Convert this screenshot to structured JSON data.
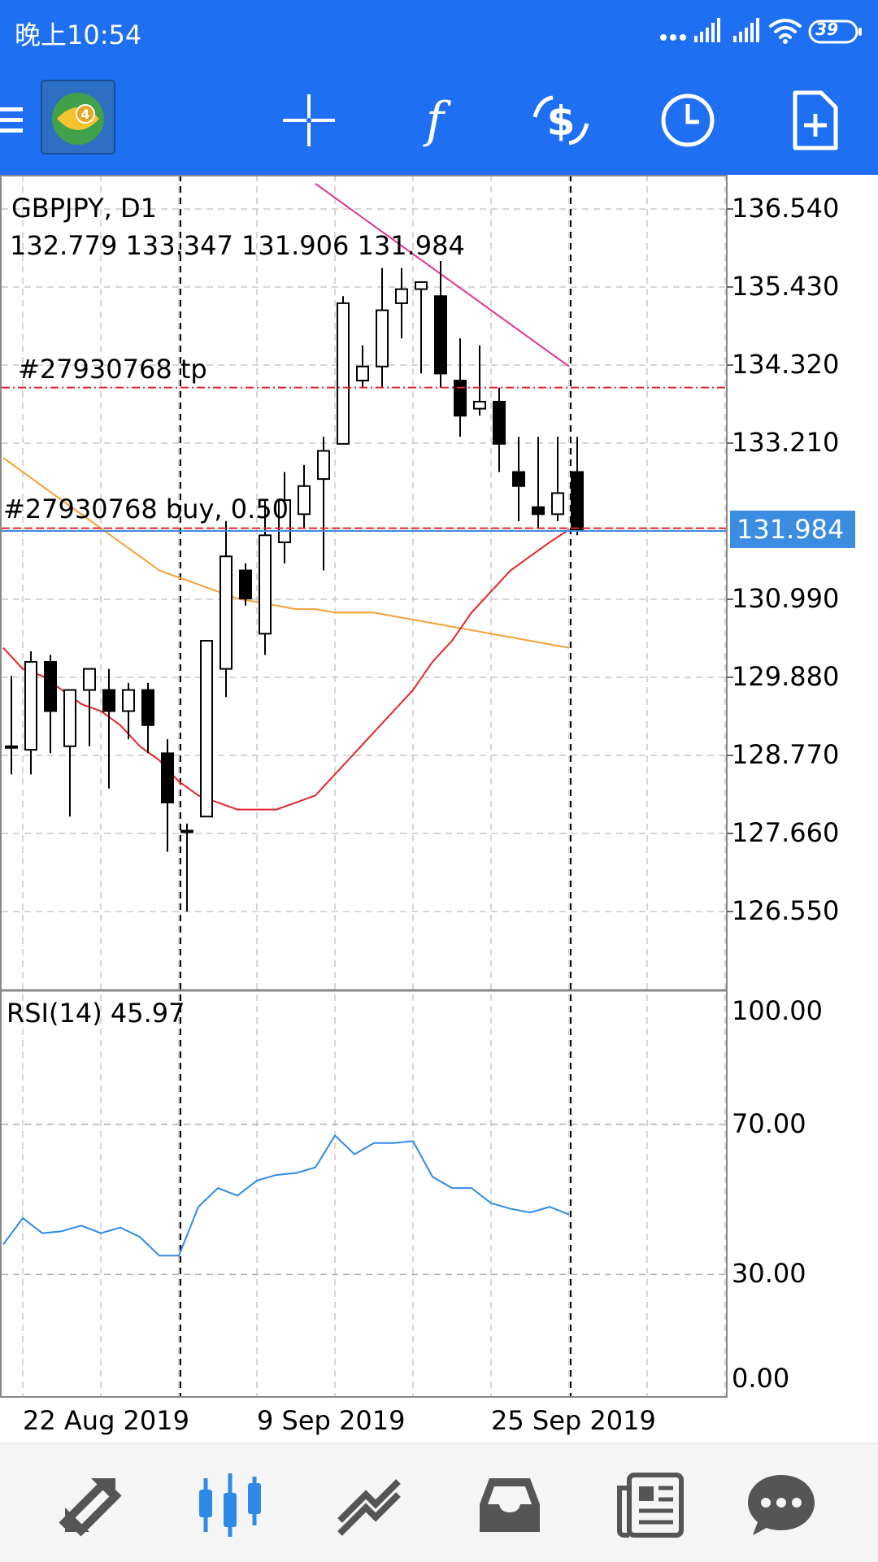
{
  "status_bar": {
    "time": "晚上10:54",
    "battery": "39"
  },
  "toolbar": {
    "menu_icon": "hamburger-icon",
    "app_logo": "mt4-logo",
    "items": [
      {
        "name": "crosshair",
        "icon": "crosshair-icon"
      },
      {
        "name": "indicators",
        "icon": "function-icon"
      },
      {
        "name": "trade",
        "icon": "dollar-refresh-icon"
      },
      {
        "name": "timeframe",
        "icon": "clock-icon"
      },
      {
        "name": "new-order",
        "icon": "new-document-icon"
      }
    ]
  },
  "chart": {
    "symbol_label": "GBPJPY, D1",
    "ohlc_label": "132.779 133.347 131.906 131.984",
    "tp_label": "#27930768 tp",
    "buy_label": "#27930768 buy, 0.50",
    "current_price": "131.984",
    "price_ticks": [
      "136.540",
      "135.430",
      "134.320",
      "133.210",
      "130.990",
      "129.880",
      "128.770",
      "127.660",
      "126.550"
    ],
    "rsi_label": "RSI(14) 45.97",
    "rsi_ticks": [
      "100.00",
      "70.00",
      "30.00",
      "0.00"
    ],
    "date_ticks": [
      "22 Aug 2019",
      "9 Sep 2019",
      "25 Sep 2019"
    ],
    "colors": {
      "bull": "#ffffff",
      "bear": "#000000",
      "ma_fast": "#e8232a",
      "ma_mid": "#f5a033",
      "ma_slow": "#e0348f",
      "rsi": "#2d8ae6",
      "price_tag": "#3b8de2",
      "tp_line": "#e8232a"
    }
  },
  "chart_data": {
    "type": "candlestick",
    "symbol": "GBPJPY",
    "timeframe": "D1",
    "ylim": [
      125.8,
      137.2
    ],
    "candles": [
      {
        "o": 128.9,
        "h": 129.9,
        "l": 128.5,
        "c": 128.9
      },
      {
        "o": 128.85,
        "h": 130.25,
        "l": 128.5,
        "c": 130.1
      },
      {
        "o": 130.1,
        "h": 130.2,
        "l": 128.8,
        "c": 129.4
      },
      {
        "o": 128.9,
        "h": 129.7,
        "l": 127.9,
        "c": 129.7
      },
      {
        "o": 129.7,
        "h": 130.0,
        "l": 128.9,
        "c": 130.0
      },
      {
        "o": 129.7,
        "h": 130.0,
        "l": 128.3,
        "c": 129.4
      },
      {
        "o": 129.4,
        "h": 129.8,
        "l": 129.0,
        "c": 129.7
      },
      {
        "o": 129.7,
        "h": 129.8,
        "l": 128.8,
        "c": 129.2
      },
      {
        "o": 128.8,
        "h": 129.0,
        "l": 127.4,
        "c": 128.1
      },
      {
        "o": 127.7,
        "h": 127.8,
        "l": 126.55,
        "c": 127.7
      },
      {
        "o": 127.9,
        "h": 130.4,
        "l": 127.9,
        "c": 130.4
      },
      {
        "o": 130.0,
        "h": 132.1,
        "l": 129.6,
        "c": 131.6
      },
      {
        "o": 131.4,
        "h": 131.5,
        "l": 130.9,
        "c": 131.0
      },
      {
        "o": 130.5,
        "h": 132.4,
        "l": 130.2,
        "c": 131.9
      },
      {
        "o": 131.8,
        "h": 132.8,
        "l": 131.5,
        "c": 132.4
      },
      {
        "o": 132.2,
        "h": 132.9,
        "l": 132.0,
        "c": 132.6
      },
      {
        "o": 132.7,
        "h": 133.3,
        "l": 131.4,
        "c": 133.1
      },
      {
        "o": 133.2,
        "h": 135.3,
        "l": 133.2,
        "c": 135.2
      },
      {
        "o": 134.1,
        "h": 134.6,
        "l": 134.0,
        "c": 134.3
      },
      {
        "o": 134.3,
        "h": 135.7,
        "l": 134.0,
        "c": 135.1
      },
      {
        "o": 135.2,
        "h": 135.7,
        "l": 134.7,
        "c": 135.4
      },
      {
        "o": 135.4,
        "h": 135.5,
        "l": 134.2,
        "c": 135.5
      },
      {
        "o": 135.3,
        "h": 135.8,
        "l": 134.0,
        "c": 134.2
      },
      {
        "o": 134.1,
        "h": 134.7,
        "l": 133.3,
        "c": 133.6
      },
      {
        "o": 133.7,
        "h": 134.6,
        "l": 133.6,
        "c": 133.8
      },
      {
        "o": 133.8,
        "h": 134.0,
        "l": 132.8,
        "c": 133.2
      },
      {
        "o": 132.8,
        "h": 133.3,
        "l": 132.1,
        "c": 132.6
      },
      {
        "o": 132.3,
        "h": 133.3,
        "l": 132.0,
        "c": 132.2
      },
      {
        "o": 132.2,
        "h": 133.3,
        "l": 132.1,
        "c": 132.5
      },
      {
        "o": 132.8,
        "h": 133.3,
        "l": 131.9,
        "c": 131.98
      }
    ],
    "ma_fast": [
      130.3,
      130.0,
      129.9,
      129.7,
      129.5,
      129.4,
      129.2,
      128.9,
      128.7,
      128.4,
      128.2,
      128.1,
      128.0,
      128.0,
      128.0,
      128.1,
      128.2,
      128.5,
      128.8,
      129.1,
      129.4,
      129.7,
      130.1,
      130.4,
      130.8,
      131.1,
      131.4,
      131.6,
      131.8,
      131.98
    ],
    "ma_mid": [
      133.0,
      132.8,
      132.6,
      132.4,
      132.2,
      132.0,
      131.8,
      131.6,
      131.4,
      131.3,
      131.2,
      131.1,
      131.0,
      130.95,
      130.9,
      130.85,
      130.85,
      130.8,
      130.8,
      130.8,
      130.75,
      130.7,
      130.65,
      130.6,
      130.55,
      130.5,
      130.45,
      130.4,
      130.35,
      130.3
    ],
    "ma_slow": [
      136.9,
      136.7,
      136.5,
      136.3,
      136.1,
      135.9,
      135.7,
      135.5,
      135.3,
      135.1,
      134.9,
      134.7,
      134.5,
      134.3
    ],
    "levels": {
      "tp": 134.0,
      "buy": 132.0,
      "current": 131.984
    },
    "rsi": {
      "name": "RSI(14)",
      "last": 45.97,
      "ylim": [
        0,
        100
      ],
      "levels": [
        70,
        30
      ],
      "values": [
        38,
        45,
        41,
        41.5,
        43,
        41,
        42.5,
        40,
        35,
        35,
        48,
        53,
        51,
        55,
        56.5,
        57,
        58.5,
        67,
        62,
        65,
        65,
        65.5,
        56,
        53,
        53,
        49,
        47.5,
        46.5,
        48,
        45.97
      ]
    },
    "x_labels": [
      "22 Aug 2019",
      "9 Sep 2019",
      "25 Sep 2019"
    ]
  },
  "bottom_nav": [
    {
      "name": "quotes",
      "icon": "quotes-arrows-icon"
    },
    {
      "name": "chart",
      "icon": "candles-icon",
      "active": true
    },
    {
      "name": "trade",
      "icon": "trend-icon"
    },
    {
      "name": "history",
      "icon": "inbox-icon"
    },
    {
      "name": "news",
      "icon": "newspaper-icon"
    },
    {
      "name": "chat",
      "icon": "chat-bubble-icon"
    }
  ]
}
